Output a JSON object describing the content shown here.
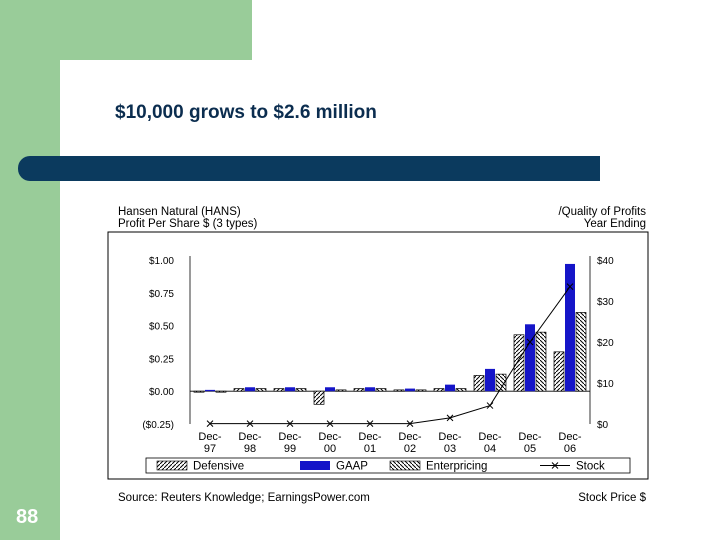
{
  "slide": {
    "title": "$10,000 grows to $2.6 million",
    "page_number": "88"
  },
  "colors": {
    "green_frame": "#99cc99",
    "navy_bar": "#0b3a5e",
    "gaap_bar": "#1515c8"
  },
  "chart_data": {
    "type": "bar",
    "header_left": [
      "Hansen Natural (HANS)",
      "Profit Per Share $ (3 types)"
    ],
    "header_right": [
      "/Quality of Profits",
      "Year Ending"
    ],
    "footer_left": "Source: Reuters Knowledge; EarningsPower.com",
    "footer_right": "Stock Price $",
    "categories": [
      [
        "Dec-",
        "97"
      ],
      [
        "Dec-",
        "98"
      ],
      [
        "Dec-",
        "99"
      ],
      [
        "Dec-",
        "00"
      ],
      [
        "Dec-",
        "01"
      ],
      [
        "Dec-",
        "02"
      ],
      [
        "Dec-",
        "03"
      ],
      [
        "Dec-",
        "04"
      ],
      [
        "Dec-",
        "05"
      ],
      [
        "Dec-",
        "06"
      ]
    ],
    "left_axis": {
      "ylim": [
        -0.25,
        1.0
      ],
      "ticks": [
        [
          "$1.00",
          1.0
        ],
        [
          "$0.75",
          0.75
        ],
        [
          "$0.50",
          0.5
        ],
        [
          "$0.25",
          0.25
        ],
        [
          "$0.00",
          0.0
        ],
        [
          "($0.25)",
          -0.25
        ]
      ]
    },
    "right_axis": {
      "ylim": [
        0,
        40
      ],
      "ticks": [
        [
          "$40",
          40
        ],
        [
          "$30",
          30
        ],
        [
          "$20",
          20
        ],
        [
          "$10",
          10
        ],
        [
          "$0",
          0
        ]
      ]
    },
    "series": [
      {
        "name": "Defensive",
        "axis": "left",
        "kind": "bar",
        "style": "hatch",
        "values": [
          0.0,
          0.02,
          0.02,
          -0.1,
          0.02,
          0.01,
          0.02,
          0.12,
          0.43,
          0.3
        ]
      },
      {
        "name": "GAAP",
        "axis": "left",
        "kind": "bar",
        "style": "solid",
        "values": [
          0.01,
          0.03,
          0.03,
          0.03,
          0.03,
          0.02,
          0.05,
          0.17,
          0.51,
          0.97
        ]
      },
      {
        "name": "Enterpricing",
        "axis": "left",
        "kind": "bar",
        "style": "backhatch",
        "values": [
          0.0,
          0.02,
          0.02,
          0.01,
          0.02,
          0.01,
          0.02,
          0.13,
          0.45,
          0.6
        ]
      },
      {
        "name": "Stock",
        "axis": "right",
        "kind": "line",
        "values": [
          0.1,
          0.1,
          0.1,
          0.1,
          0.1,
          0.1,
          1.5,
          4.5,
          20,
          33.5
        ]
      }
    ],
    "legend": [
      {
        "label": "Defensive",
        "style": "hatch"
      },
      {
        "label": "GAAP",
        "style": "solid"
      },
      {
        "label": "Enterpricing",
        "style": "backhatch"
      },
      {
        "label": "Stock",
        "style": "line"
      }
    ],
    "legend_position": "bottom",
    "grid": false
  }
}
